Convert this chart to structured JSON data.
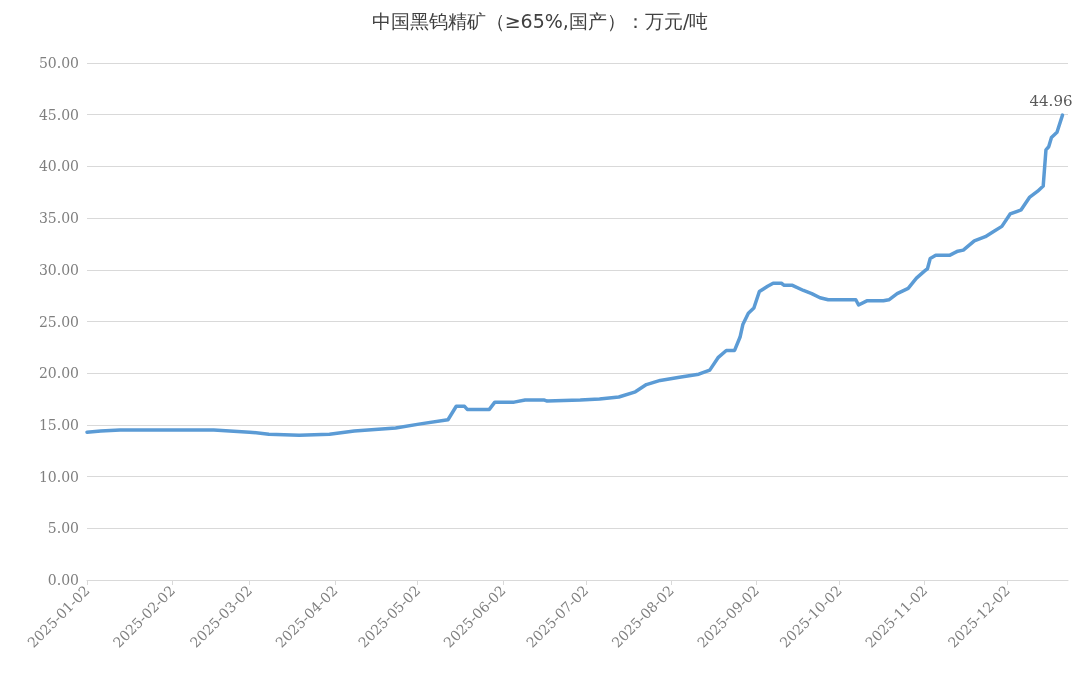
{
  "chart_data": {
    "type": "line",
    "title": "中国黑钨精矿（≥65%,国产）：万元/吨",
    "x": [
      "2025-01-02",
      "2025-01-07",
      "2025-01-14",
      "2025-02-14",
      "2025-02-17",
      "2025-03-02",
      "2025-03-09",
      "2025-03-20",
      "2025-03-31",
      "2025-04-09",
      "2025-04-24",
      "2025-05-03",
      "2025-05-13",
      "2025-05-16",
      "2025-05-19",
      "2025-05-20",
      "2025-05-28",
      "2025-05-30",
      "2025-06-06",
      "2025-06-10",
      "2025-06-17",
      "2025-06-18",
      "2025-06-30",
      "2025-07-07",
      "2025-07-14",
      "2025-07-20",
      "2025-07-24",
      "2025-07-29",
      "2025-08-05",
      "2025-08-12",
      "2025-08-16",
      "2025-08-19",
      "2025-08-22",
      "2025-08-25",
      "2025-08-27",
      "2025-08-28",
      "2025-08-30",
      "2025-09-01",
      "2025-09-03",
      "2025-09-06",
      "2025-09-08",
      "2025-09-11",
      "2025-09-12",
      "2025-09-15",
      "2025-09-19",
      "2025-09-22",
      "2025-09-25",
      "2025-09-28",
      "2025-10-08",
      "2025-10-09",
      "2025-10-12",
      "2025-10-18",
      "2025-10-20",
      "2025-10-23",
      "2025-10-27",
      "2025-10-30",
      "2025-11-02",
      "2025-11-03",
      "2025-11-04",
      "2025-11-06",
      "2025-11-11",
      "2025-11-14",
      "2025-11-16",
      "2025-11-20",
      "2025-11-24",
      "2025-11-27",
      "2025-11-30",
      "2025-12-03",
      "2025-12-07",
      "2025-12-10",
      "2025-12-13",
      "2025-12-15",
      "2025-12-16",
      "2025-12-17",
      "2025-12-18",
      "2025-12-20",
      "2025-12-22"
    ],
    "series": [
      {
        "color": "#5b9bd5",
        "values": [
          14.3,
          14.4,
          14.5,
          14.5,
          14.5,
          14.3,
          14.1,
          14.0,
          14.1,
          14.4,
          14.7,
          15.1,
          15.5,
          16.8,
          16.8,
          16.5,
          16.5,
          17.2,
          17.2,
          17.4,
          17.4,
          17.3,
          17.4,
          17.5,
          17.7,
          18.2,
          18.9,
          19.3,
          19.6,
          19.9,
          20.3,
          21.5,
          22.2,
          22.2,
          23.5,
          24.7,
          25.8,
          26.3,
          27.9,
          28.4,
          28.7,
          28.7,
          28.5,
          28.5,
          28.0,
          27.7,
          27.3,
          27.1,
          27.1,
          26.6,
          27.0,
          27.0,
          27.1,
          27.7,
          28.2,
          29.2,
          29.9,
          30.1,
          31.1,
          31.4,
          31.4,
          31.8,
          31.9,
          32.8,
          33.2,
          33.7,
          34.2,
          35.4,
          35.8,
          37.0,
          37.6,
          38.1,
          41.6,
          41.9,
          42.8,
          43.3,
          44.96
        ],
        "value_labels": [
          null,
          null,
          null,
          null,
          null,
          null,
          null,
          null,
          null,
          null,
          null,
          null,
          null,
          null,
          null,
          null,
          null,
          null,
          null,
          null,
          null,
          null,
          null,
          null,
          null,
          null,
          null,
          null,
          null,
          null,
          null,
          null,
          null,
          null,
          null,
          null,
          null,
          null,
          null,
          null,
          null,
          null,
          null,
          null,
          null,
          null,
          null,
          null,
          null,
          null,
          null,
          null,
          null,
          null,
          null,
          null,
          null,
          null,
          null,
          null,
          null,
          null,
          null,
          null,
          null,
          null,
          null,
          null,
          null,
          null,
          null,
          null,
          null,
          null,
          null,
          null,
          "44.96"
        ]
      }
    ],
    "xlim": [
      "2025-01-02",
      "2025-12-24"
    ],
    "xticks": [
      "2025-01-02",
      "2025-02-02",
      "2025-03-02",
      "2025-04-02",
      "2025-05-02",
      "2025-06-02",
      "2025-07-02",
      "2025-08-02",
      "2025-09-02",
      "2025-10-02",
      "2025-11-02",
      "2025-12-02"
    ],
    "ylim": [
      0,
      50
    ],
    "yticks": [
      {
        "value": 0,
        "label": "0.00"
      },
      {
        "value": 5,
        "label": "5.00"
      },
      {
        "value": 10,
        "label": "10.00"
      },
      {
        "value": 15,
        "label": "15.00"
      },
      {
        "value": 20,
        "label": "20.00"
      },
      {
        "value": 25,
        "label": "25.00"
      },
      {
        "value": 30,
        "label": "30.00"
      },
      {
        "value": 35,
        "label": "35.00"
      },
      {
        "value": 40,
        "label": "40.00"
      },
      {
        "value": 45,
        "label": "45.00"
      },
      {
        "value": 50,
        "label": "50.00"
      }
    ],
    "grid": "y",
    "marker": "none",
    "line_style": "solid"
  }
}
